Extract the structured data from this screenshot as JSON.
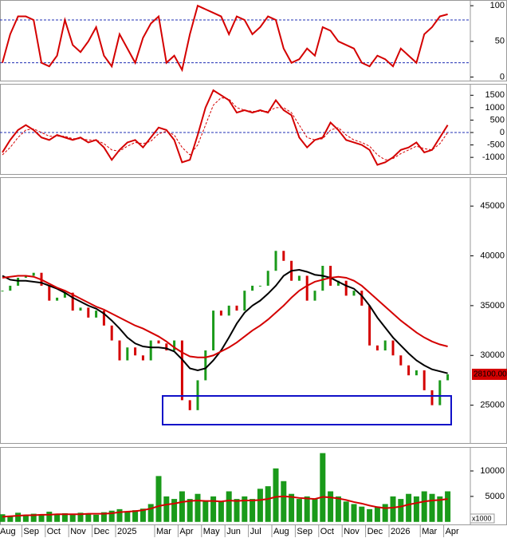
{
  "chart_data": [
    {
      "type": "line",
      "ylim": [
        -5,
        108
      ],
      "yticks": [
        0,
        50,
        100
      ],
      "levels": [
        20,
        80
      ],
      "level_color": "#1f2fb4",
      "series": [
        {
          "color": "#d40000",
          "values": [
            20,
            60,
            85,
            85,
            80,
            20,
            15,
            30,
            80,
            45,
            35,
            50,
            70,
            30,
            15,
            60,
            40,
            20,
            55,
            75,
            85,
            20,
            30,
            10,
            60,
            100,
            95,
            90,
            85,
            60,
            85,
            80,
            60,
            70,
            85,
            80,
            40,
            20,
            25,
            40,
            30,
            70,
            65,
            50,
            45,
            40,
            20,
            15,
            30,
            25,
            15,
            40,
            30,
            20,
            60,
            70,
            85,
            88
          ]
        }
      ]
    },
    {
      "type": "line",
      "ylim": [
        -1670,
        1960
      ],
      "yticks": [
        -1000,
        -500,
        0,
        500,
        1000,
        1500
      ],
      "levels": [
        0
      ],
      "level_color": "#1f2fb4",
      "series": [
        {
          "color": "#d40000",
          "values": [
            -800,
            -300,
            100,
            300,
            100,
            -200,
            -300,
            -100,
            -200,
            -300,
            -200,
            -400,
            -300,
            -600,
            -1100,
            -700,
            -400,
            -300,
            -600,
            -200,
            200,
            100,
            -300,
            -1200,
            -1100,
            -100,
            1000,
            1700,
            1500,
            1300,
            800,
            900,
            800,
            900,
            800,
            1300,
            900,
            700,
            -200,
            -600,
            -300,
            -200,
            400,
            100,
            -300,
            -400,
            -500,
            -700,
            -1300,
            -1200,
            -1000,
            -700,
            -600,
            -400,
            -800,
            -700,
            -200,
            300
          ]
        },
        {
          "color": "#d40000",
          "dashed": true,
          "values": [
            -900,
            -600,
            -200,
            100,
            150,
            0,
            -150,
            -150,
            -150,
            -250,
            -250,
            -300,
            -300,
            -450,
            -700,
            -750,
            -550,
            -400,
            -450,
            -350,
            -50,
            50,
            -100,
            -600,
            -900,
            -500,
            300,
            1100,
            1400,
            1350,
            1000,
            900,
            850,
            850,
            850,
            1000,
            1000,
            800,
            300,
            -200,
            -300,
            -250,
            100,
            200,
            -100,
            -300,
            -400,
            -550,
            -900,
            -1100,
            -1050,
            -850,
            -700,
            -550,
            -650,
            -700,
            -450,
            0
          ]
        }
      ]
    },
    {
      "type": "price",
      "ylim": [
        21200,
        47900
      ],
      "yticks": [
        25000,
        30000,
        35000,
        40000,
        45000
      ],
      "up_color": "#1a9a1a",
      "down_color": "#d40000",
      "closes": [
        36500,
        37000,
        37800,
        38000,
        38300,
        37000,
        35500,
        35800,
        36300,
        34500,
        34800,
        33800,
        34500,
        33000,
        31500,
        29500,
        30800,
        30000,
        29500,
        31500,
        31200,
        30500,
        31500,
        25500,
        24500,
        27500,
        30500,
        34500,
        34000,
        35000,
        34500,
        36500,
        37000,
        37000,
        38500,
        40500,
        39500,
        37500,
        38000,
        35500,
        36500,
        39000,
        37000,
        37500,
        36000,
        36500,
        35000,
        31000,
        30500,
        31500,
        30000,
        29000,
        28000,
        28500,
        26500,
        25000,
        27500,
        28100
      ],
      "series": [
        {
          "color": "#000000",
          "values": [
            38000,
            37600,
            37500,
            37500,
            37400,
            37300,
            37000,
            36700,
            36300,
            35800,
            35400,
            35000,
            34700,
            34200,
            33500,
            32700,
            31800,
            31200,
            30900,
            30800,
            30800,
            30700,
            30400,
            29600,
            28700,
            28500,
            28700,
            29500,
            30500,
            31800,
            33200,
            34300,
            35000,
            35500,
            36200,
            37000,
            38000,
            38500,
            38600,
            38400,
            38100,
            38000,
            37800,
            37400,
            37000,
            36700,
            36000,
            35000,
            33800,
            32800,
            31800,
            31000,
            30200,
            29500,
            29000,
            28600,
            28400,
            28200
          ]
        },
        {
          "color": "#d40000",
          "values": [
            37800,
            37900,
            38000,
            38000,
            37900,
            37600,
            37200,
            36800,
            36500,
            36100,
            35700,
            35300,
            34900,
            34600,
            34200,
            33800,
            33400,
            33000,
            32700,
            32300,
            31900,
            31400,
            30800,
            30300,
            29900,
            29800,
            29800,
            30000,
            30400,
            30800,
            31300,
            31900,
            32500,
            33000,
            33600,
            34300,
            35000,
            35800,
            36500,
            37000,
            37400,
            37600,
            37800,
            37900,
            37800,
            37500,
            37000,
            36300,
            35600,
            34900,
            34200,
            33500,
            32900,
            32300,
            31800,
            31400,
            31100,
            30900
          ]
        }
      ],
      "marker": {
        "value": 28100,
        "label": "28100.00"
      }
    },
    {
      "type": "bar",
      "ylim": [
        -500,
        14700
      ],
      "yticks": [
        5000,
        10000
      ],
      "unit_label": "x1000",
      "color": "#1a9a1a",
      "categories": [
        "Aug",
        null,
        null,
        "Sep",
        null,
        null,
        "Oct",
        null,
        null,
        "Nov",
        null,
        null,
        "Dec",
        null,
        null,
        "2025",
        null,
        null,
        null,
        null,
        "Mar",
        null,
        null,
        "Apr",
        null,
        null,
        "May",
        null,
        null,
        "Jun",
        null,
        null,
        "Jul",
        null,
        null,
        "Aug",
        null,
        null,
        "Sep",
        null,
        null,
        "Oct",
        null,
        null,
        "Nov",
        null,
        null,
        "Dec",
        null,
        null,
        "2026",
        null,
        null,
        null,
        "Mar",
        null,
        null,
        "Apr"
      ],
      "values": [
        1500,
        1200,
        1800,
        1400,
        1600,
        1300,
        2000,
        1500,
        1700,
        1400,
        1800,
        1600,
        1400,
        1900,
        2200,
        2500,
        2000,
        2300,
        2600,
        3500,
        9000,
        5000,
        4500,
        6000,
        4500,
        5500,
        4000,
        5000,
        4000,
        6000,
        4500,
        5000,
        4500,
        6500,
        7000,
        10500,
        8000,
        5500,
        4500,
        5000,
        4500,
        13500,
        6000,
        5000,
        4000,
        3500,
        3000,
        2500,
        3000,
        3500,
        5000,
        4500,
        5500,
        5000,
        6000,
        5500,
        5000,
        6000
      ],
      "series": [
        {
          "color": "#d40000",
          "values": [
            1000,
            1100,
            1200,
            1300,
            1300,
            1400,
            1400,
            1500,
            1500,
            1500,
            1500,
            1600,
            1600,
            1600,
            1700,
            1900,
            2000,
            2100,
            2300,
            2600,
            3100,
            3400,
            3600,
            3900,
            4100,
            4200,
            4100,
            4100,
            4000,
            4200,
            4100,
            4200,
            4200,
            4300,
            4500,
            4900,
            5000,
            4900,
            4700,
            4600,
            4500,
            4900,
            4800,
            4600,
            4300,
            3900,
            3600,
            3200,
            2900,
            2700,
            2800,
            3000,
            3400,
            3700,
            4000,
            4200,
            4300,
            4500
          ]
        }
      ]
    }
  ]
}
